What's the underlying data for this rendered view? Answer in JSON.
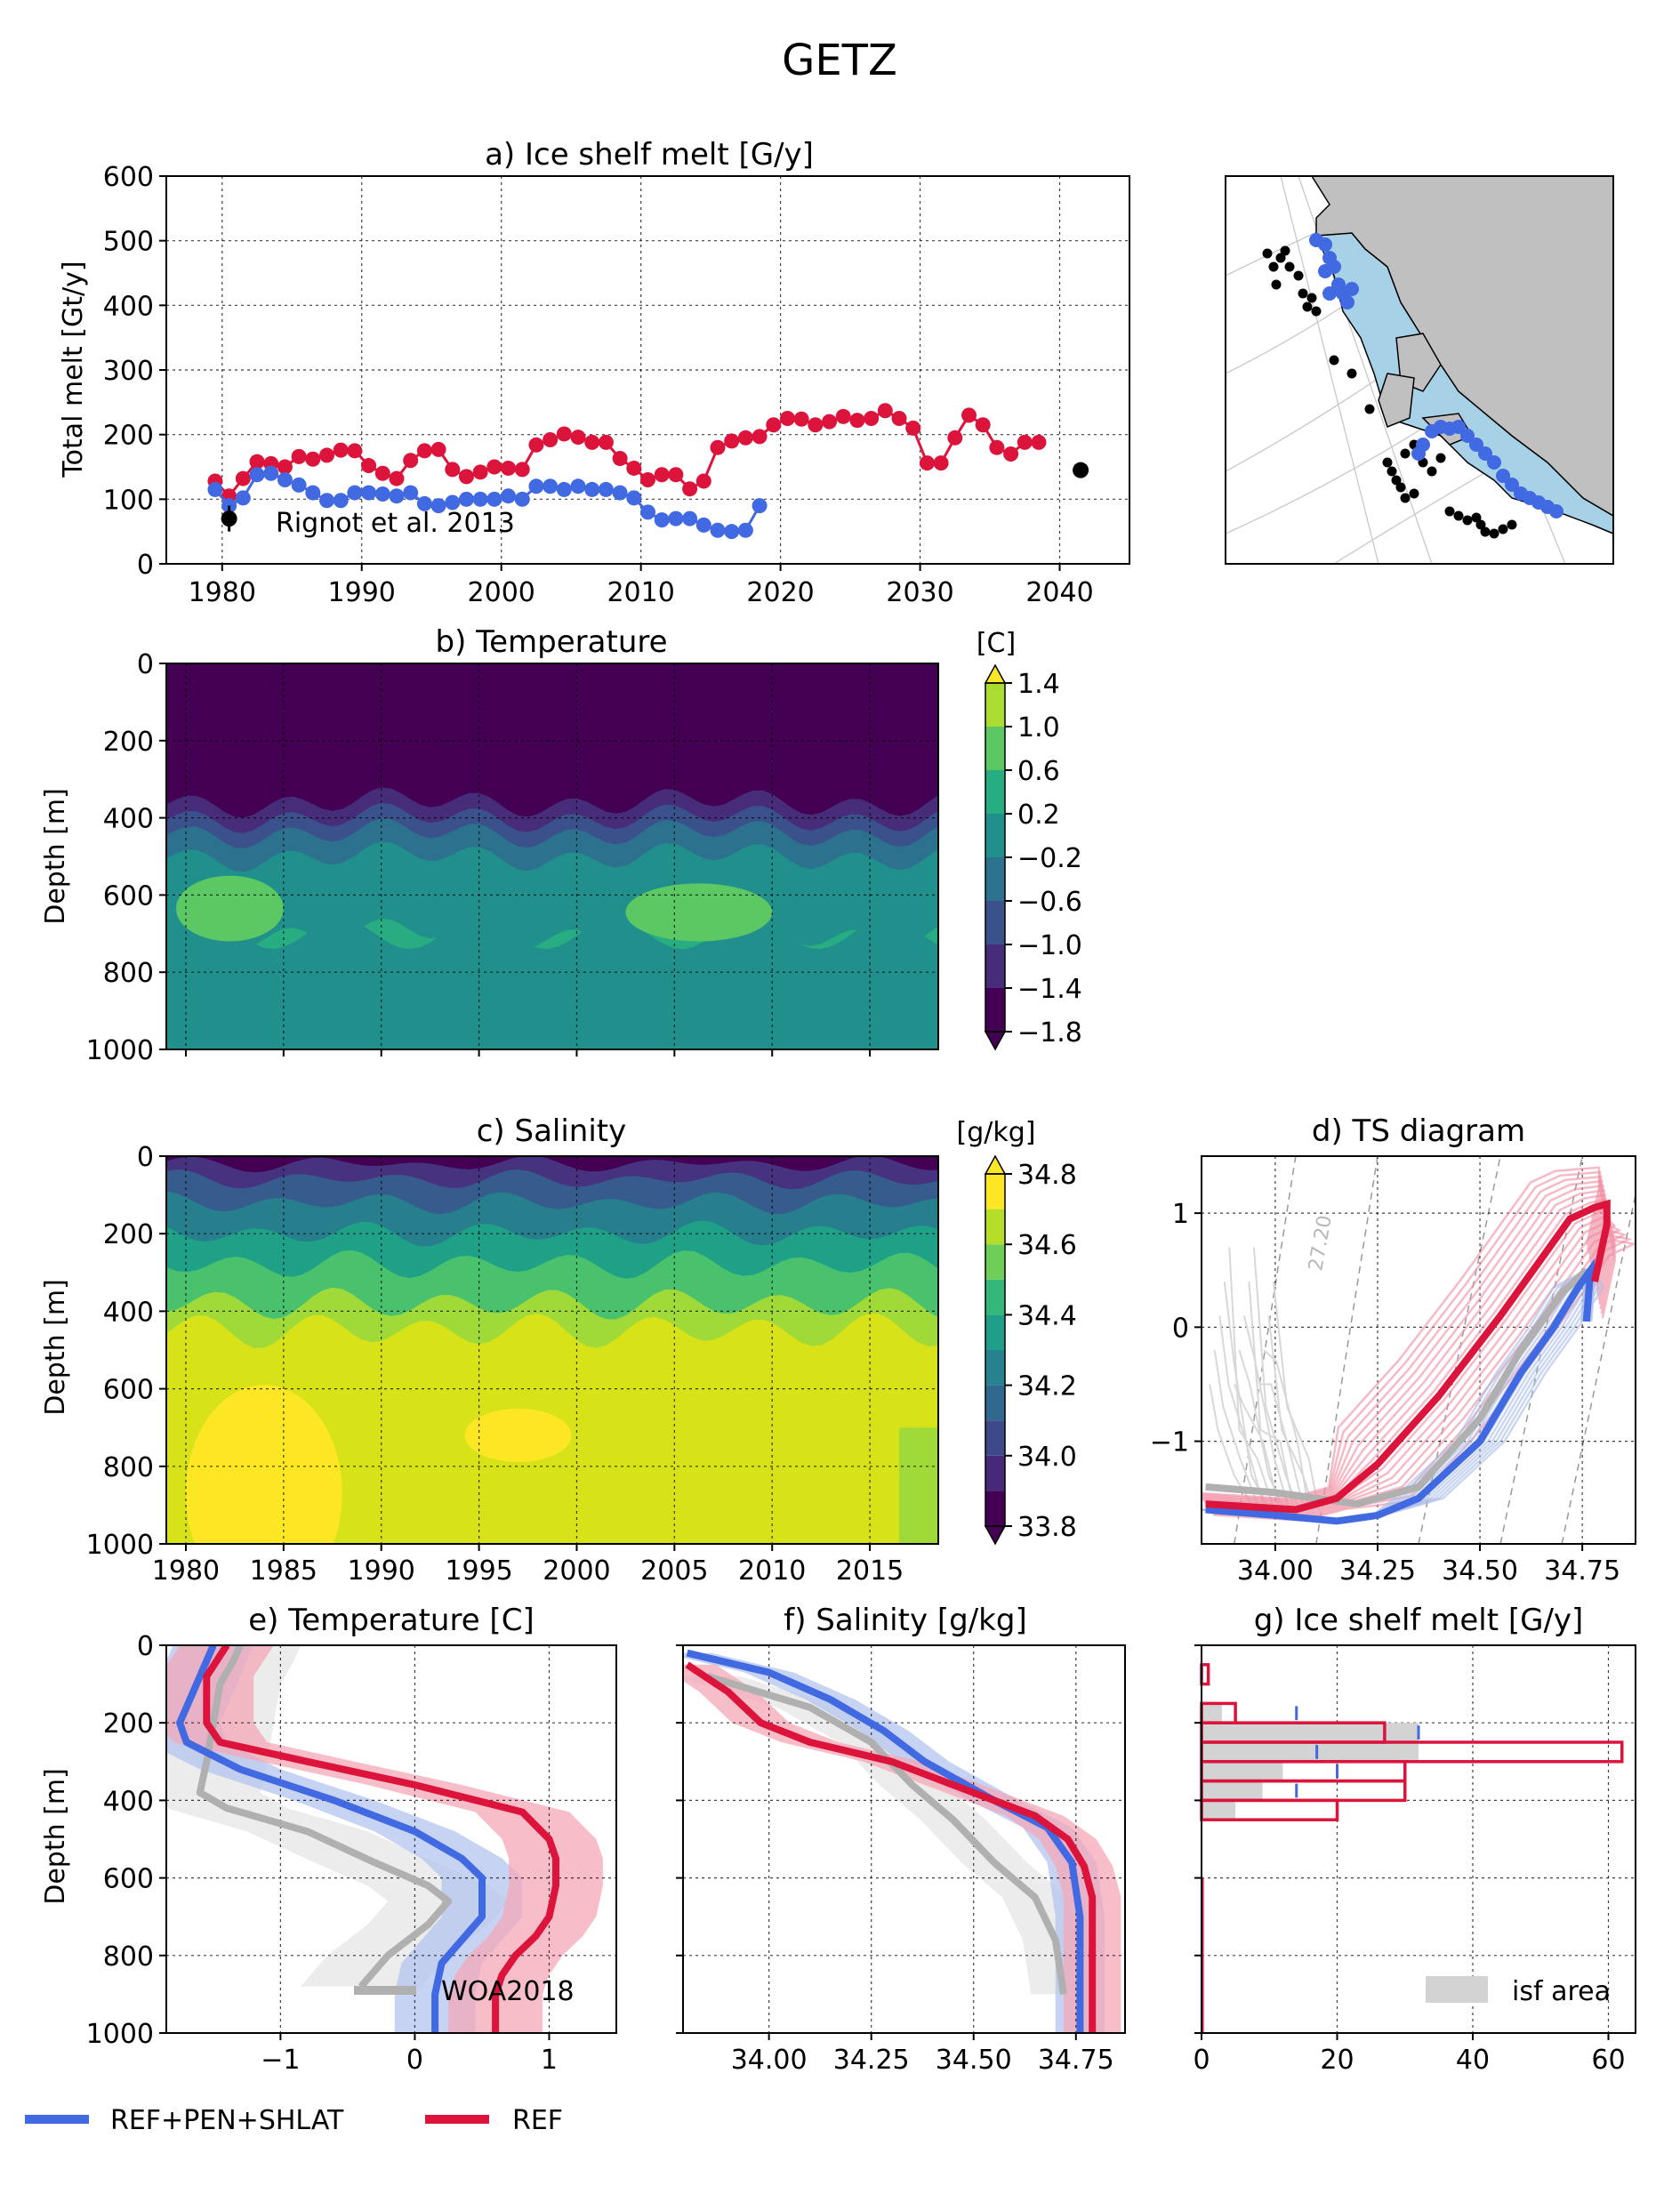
{
  "figure": {
    "title": "GETZ"
  },
  "colors": {
    "ref": "#dc143c",
    "pen": "#4169e1",
    "woa": "#b0b0b0",
    "land": "#c0c0c0",
    "shelf": "#a6d1e6"
  },
  "legend": {
    "items": [
      {
        "label": "REF+PEN+SHLAT",
        "color": "#4169e1"
      },
      {
        "label": "REF",
        "color": "#dc143c"
      }
    ]
  },
  "panels": {
    "a": {
      "title": "a) Ice shelf melt [G/y]",
      "ylabel": "Total melt [Gt/y]",
      "xticks": [
        "1980",
        "1990",
        "2000",
        "2010",
        "2020",
        "2030",
        "2040"
      ],
      "yticks": [
        "0",
        "100",
        "200",
        "300",
        "400",
        "500",
        "600"
      ],
      "annotation": "Rignot et al. 2013"
    },
    "b": {
      "title": "b) Temperature",
      "ylabel": "Depth [m]",
      "unit": "[C]",
      "yticks": [
        "0",
        "200",
        "400",
        "600",
        "800",
        "1000"
      ],
      "cbar_ticks": [
        "1.4",
        "1.0",
        "0.6",
        "0.2",
        "−0.2",
        "−0.6",
        "−1.0",
        "−1.4",
        "−1.8"
      ]
    },
    "c": {
      "title": "c) Salinity",
      "ylabel": "Depth [m]",
      "unit": "[g/kg]",
      "yticks": [
        "0",
        "200",
        "400",
        "600",
        "800",
        "1000"
      ],
      "xticks": [
        "1980",
        "1985",
        "1990",
        "1995",
        "2000",
        "2005",
        "2010",
        "2015"
      ],
      "cbar_ticks": [
        "34.8",
        "34.6",
        "34.4",
        "34.2",
        "34.0",
        "33.8"
      ]
    },
    "d": {
      "title": "d) TS diagram",
      "xticks": [
        "34.00",
        "34.25",
        "34.50",
        "34.75"
      ],
      "yticks": [
        "1",
        "0",
        "−1"
      ],
      "isopycnal_label": "27.20"
    },
    "e": {
      "title": "e) Temperature [C]",
      "ylabel": "Depth [m]",
      "xticks": [
        "−1",
        "0",
        "1"
      ],
      "yticks": [
        "0",
        "200",
        "400",
        "600",
        "800",
        "1000"
      ],
      "legend": "WOA2018"
    },
    "f": {
      "title": "f) Salinity [g/kg]",
      "xticks": [
        "34.00",
        "34.25",
        "34.50",
        "34.75"
      ]
    },
    "g": {
      "title": "g) Ice shelf melt [G/y]",
      "xticks": [
        "0",
        "20",
        "40",
        "60"
      ],
      "legend": "isf area"
    }
  },
  "chart_data": [
    {
      "panel": "a",
      "type": "line",
      "title": "a) Ice shelf melt [G/y]",
      "xlabel": "",
      "ylabel": "Total melt [Gt/y]",
      "xlim": [
        1976,
        2045
      ],
      "ylim": [
        0,
        600
      ],
      "grid": true,
      "series": [
        {
          "name": "REF",
          "color": "#dc143c",
          "x": [
            1979.5,
            1980.5,
            1981.5,
            1982.5,
            1983.5,
            1984.5,
            1985.5,
            1986.5,
            1987.5,
            1988.5,
            1989.5,
            1990.5,
            1991.5,
            1992.5,
            1993.5,
            1994.5,
            1995.5,
            1996.5,
            1997.5,
            1998.5,
            1999.5,
            2000.5,
            2001.5,
            2002.5,
            2003.5,
            2004.5,
            2005.5,
            2006.5,
            2007.5,
            2008.5,
            2009.5,
            2010.5,
            2011.5,
            2012.5,
            2013.5,
            2014.5,
            2015.5,
            2016.5,
            2017.5,
            2018.5,
            2019.5,
            2020.5,
            2021.5,
            2022.5,
            2023.5,
            2024.5,
            2025.5,
            2026.5,
            2027.5,
            2028.5,
            2029.5,
            2030.5,
            2031.5,
            2032.5,
            2033.5,
            2034.5,
            2035.5,
            2036.5,
            2037.5,
            2038.5
          ],
          "y": [
            128,
            105,
            132,
            158,
            155,
            150,
            166,
            162,
            168,
            176,
            175,
            152,
            140,
            132,
            160,
            175,
            177,
            146,
            135,
            142,
            150,
            148,
            146,
            184,
            192,
            201,
            196,
            188,
            188,
            163,
            148,
            130,
            138,
            138,
            116,
            128,
            180,
            190,
            195,
            197,
            215,
            225,
            224,
            215,
            220,
            228,
            222,
            225,
            237,
            225,
            210,
            156,
            156,
            195,
            230,
            215,
            180,
            170,
            188,
            188
          ]
        },
        {
          "name": "REF+PEN+SHLAT",
          "color": "#4169e1",
          "x": [
            1979.5,
            1980.5,
            1981.5,
            1982.5,
            1983.5,
            1984.5,
            1985.5,
            1986.5,
            1987.5,
            1988.5,
            1989.5,
            1990.5,
            1991.5,
            1992.5,
            1993.5,
            1994.5,
            1995.5,
            1996.5,
            1997.5,
            1998.5,
            1999.5,
            2000.5,
            2001.5,
            2002.5,
            2003.5,
            2004.5,
            2005.5,
            2006.5,
            2007.5,
            2008.5,
            2009.5,
            2010.5,
            2011.5,
            2012.5,
            2013.5,
            2014.5,
            2015.5,
            2016.5,
            2017.5,
            2018.5
          ],
          "y": [
            115,
            90,
            102,
            138,
            140,
            130,
            122,
            110,
            98,
            98,
            110,
            110,
            108,
            105,
            110,
            93,
            90,
            95,
            100,
            100,
            100,
            105,
            100,
            120,
            120,
            115,
            120,
            115,
            115,
            110,
            102,
            80,
            68,
            70,
            70,
            60,
            52,
            50,
            52,
            90
          ]
        },
        {
          "name": "",
          "type": "errorbar",
          "color": "#000000",
          "x": [
            1980.5,
            2041.5
          ],
          "y": [
            70,
            145
          ],
          "yerr": [
            20,
            8
          ]
        }
      ]
    },
    {
      "panel": "b",
      "type": "heatmap",
      "title": "b) Temperature",
      "ylabel": "Depth [m]",
      "xlim": [
        1979,
        2018.5
      ],
      "ylim": [
        1000,
        0
      ],
      "levels": [
        -1.8,
        -1.4,
        -1.0,
        -0.6,
        -0.2,
        0.2,
        0.6,
        1.0,
        1.4
      ],
      "layers_depth_m": [
        310,
        360,
        400,
        440,
        500,
        700,
        1000
      ],
      "layers_temp_c": [
        -1.6,
        -1.2,
        -0.8,
        -0.4,
        0.0,
        0.4,
        0.1
      ],
      "warm_patches": [
        {
          "years": [
            1979.5,
            1985
          ],
          "depth_m": [
            550,
            720
          ]
        },
        {
          "years": [
            2002.5,
            2010
          ],
          "depth_m": [
            570,
            720
          ]
        }
      ]
    },
    {
      "panel": "c",
      "type": "heatmap",
      "title": "c) Salinity",
      "ylabel": "Depth [m]",
      "xlim": [
        1979,
        2018.5
      ],
      "ylim": [
        1000,
        0
      ],
      "levels": [
        33.8,
        34.0,
        34.2,
        34.4,
        34.6,
        34.8
      ],
      "layers_depth_m": [
        20,
        60,
        120,
        200,
        280,
        380,
        450,
        1000
      ],
      "layers_salinity": [
        33.8,
        33.9,
        34.05,
        34.2,
        34.35,
        34.5,
        34.65,
        34.72
      ],
      "fresh_patch": {
        "years": [
          2016.5,
          2018.5
        ],
        "depth_m": [
          700,
          1000
        ]
      },
      "salty_patch": {
        "years": [
          1980,
          1988
        ],
        "depth_m": [
          700,
          1000
        ]
      }
    },
    {
      "panel": "d",
      "type": "line",
      "title": "d) TS diagram",
      "xlim": [
        33.82,
        34.88
      ],
      "ylim": [
        -1.9,
        1.5
      ],
      "series": [
        {
          "name": "REF",
          "color": "#dc143c",
          "x": [
            33.83,
            34.05,
            34.15,
            34.25,
            34.4,
            34.55,
            34.65,
            34.72,
            34.78,
            34.81,
            34.81,
            34.78
          ],
          "y": [
            -1.55,
            -1.6,
            -1.5,
            -1.2,
            -0.6,
            0.1,
            0.6,
            0.95,
            1.05,
            1.08,
            0.9,
            0.4
          ]
        },
        {
          "name": "REF+PEN+SHLAT",
          "color": "#4169e1",
          "x": [
            33.83,
            34.0,
            34.15,
            34.25,
            34.35,
            34.5,
            34.6,
            34.68,
            34.74,
            34.77,
            34.76
          ],
          "y": [
            -1.6,
            -1.65,
            -1.7,
            -1.65,
            -1.5,
            -1.0,
            -0.4,
            0.0,
            0.35,
            0.5,
            0.05
          ]
        },
        {
          "name": "WOA2018",
          "color": "#b0b0b0",
          "x": [
            33.83,
            34.0,
            34.2,
            34.35,
            34.5,
            34.6,
            34.7,
            34.76
          ],
          "y": [
            -1.4,
            -1.45,
            -1.55,
            -1.4,
            -0.8,
            -0.2,
            0.3,
            0.5
          ]
        }
      ]
    },
    {
      "panel": "e",
      "type": "line",
      "title": "e) Temperature [C]",
      "ylabel": "Depth [m]",
      "xlim": [
        -1.85,
        1.5
      ],
      "ylim": [
        1000,
        0
      ],
      "series": [
        {
          "name": "REF",
          "color": "#dc143c",
          "x": [
            -1.4,
            -1.55,
            -1.55,
            -1.45,
            -0.8,
            0.0,
            0.8,
            1.0,
            1.05,
            1.05,
            1.0,
            0.9,
            0.75,
            0.65,
            0.6,
            0.6
          ],
          "y": [
            0,
            80,
            200,
            250,
            300,
            360,
            430,
            500,
            550,
            620,
            700,
            750,
            800,
            850,
            900,
            1000
          ]
        },
        {
          "name": "REF+PEN+SHLAT",
          "color": "#4169e1",
          "x": [
            -1.5,
            -1.6,
            -1.75,
            -1.7,
            -1.3,
            -0.6,
            0.0,
            0.35,
            0.5,
            0.5,
            0.35,
            0.2,
            0.15,
            0.15
          ],
          "y": [
            0,
            80,
            200,
            250,
            320,
            400,
            480,
            550,
            600,
            700,
            760,
            820,
            900,
            1000
          ]
        },
        {
          "name": "WOA2018",
          "color": "#b0b0b0",
          "x": [
            -1.3,
            -1.35,
            -1.45,
            -1.5,
            -1.55,
            -1.6,
            -1.4,
            -0.8,
            -0.3,
            0.1,
            0.25,
            0.1,
            -0.2,
            -0.4
          ],
          "y": [
            0,
            40,
            100,
            200,
            300,
            380,
            420,
            480,
            560,
            620,
            660,
            720,
            800,
            880
          ]
        }
      ],
      "shaded_range": true
    },
    {
      "panel": "f",
      "type": "line",
      "title": "f) Salinity [g/kg]",
      "xlim": [
        33.79,
        34.87
      ],
      "ylim": [
        1000,
        0
      ],
      "series": [
        {
          "name": "REF",
          "color": "#dc143c",
          "x": [
            33.8,
            33.9,
            33.98,
            34.1,
            34.3,
            34.5,
            34.65,
            34.73,
            34.77,
            34.79,
            34.79,
            34.79
          ],
          "y": [
            50,
            120,
            200,
            250,
            300,
            380,
            440,
            500,
            570,
            650,
            800,
            1000
          ]
        },
        {
          "name": "REF+PEN+SHLAT",
          "color": "#4169e1",
          "x": [
            33.8,
            34.0,
            34.15,
            34.28,
            34.38,
            34.55,
            34.68,
            34.74,
            34.76,
            34.76
          ],
          "y": [
            20,
            70,
            140,
            220,
            300,
            400,
            470,
            560,
            700,
            1000
          ]
        },
        {
          "name": "WOA2018",
          "color": "#b0b0b0",
          "x": [
            33.85,
            34.1,
            34.25,
            34.35,
            34.45,
            34.55,
            34.65,
            34.7,
            34.72
          ],
          "y": [
            80,
            160,
            250,
            360,
            450,
            560,
            650,
            760,
            900
          ]
        }
      ],
      "shaded_range": true
    },
    {
      "panel": "g",
      "type": "bar",
      "title": "g) Ice shelf melt [G/y]",
      "orientation": "horizontal",
      "xlim": [
        0,
        64
      ],
      "ylim": [
        1000,
        0
      ],
      "bins_depth_m": [
        [
          50,
          100
        ],
        [
          150,
          200
        ],
        [
          200,
          250
        ],
        [
          250,
          300
        ],
        [
          300,
          350
        ],
        [
          350,
          400
        ],
        [
          400,
          450
        ],
        [
          450,
          500
        ],
        [
          500,
          550
        ]
      ],
      "series": [
        {
          "name": "REF",
          "color": "#dc143c",
          "values": [
            1,
            5,
            27,
            62,
            30,
            30,
            20,
            0,
            0
          ]
        },
        {
          "name": "isf area",
          "color": "#d3d3d3",
          "values": [
            0,
            3,
            32,
            32,
            12,
            9,
            5,
            0,
            0
          ]
        },
        {
          "name": "REF+PEN+SHLAT",
          "color": "#4169e1",
          "markers": [
            14,
            32,
            17,
            20,
            14
          ]
        }
      ]
    }
  ]
}
